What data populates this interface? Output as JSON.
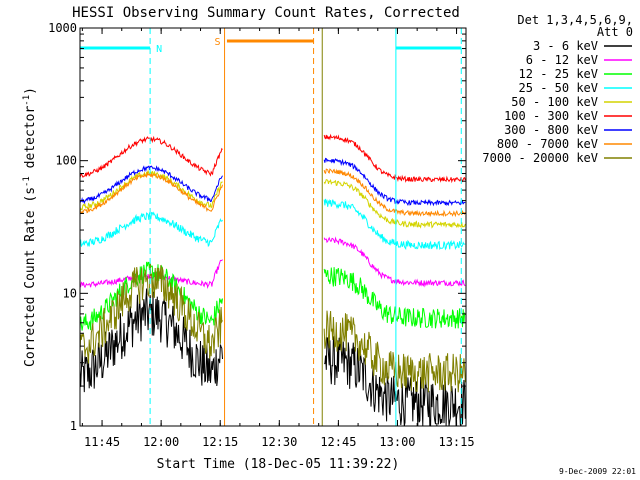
{
  "chart_data": {
    "type": "line",
    "title": "HESSI Observing Summary Count Rates, Corrected",
    "xlabel": "Start Time (18-Dec-05 11:39:22)",
    "ylabel": "Corrected Count Rate (s",
    "ylabel_sup1": "-1",
    "ylabel_mid": " detector",
    "ylabel_sup2": "-1",
    "ylabel_end": ")",
    "y_scale": "log",
    "ylim": [
      1,
      1000
    ],
    "xlim_minutes_from_start": [
      0,
      98
    ],
    "x_ticks": [
      {
        "label": "11:45",
        "t": 5.6
      },
      {
        "label": "12:00",
        "t": 20.6
      },
      {
        "label": "12:15",
        "t": 35.6
      },
      {
        "label": "12:30",
        "t": 50.6
      },
      {
        "label": "12:45",
        "t": 65.6
      },
      {
        "label": "13:00",
        "t": 80.6
      },
      {
        "label": "13:15",
        "t": 95.6
      }
    ],
    "y_ticks": [
      {
        "label": "1",
        "v": 1
      },
      {
        "label": "10",
        "v": 10
      },
      {
        "label": "100",
        "v": 100
      },
      {
        "label": "1000",
        "v": 1000
      }
    ],
    "legend_header": [
      "Det 1,3,4,5,6,9,",
      "Att 0"
    ],
    "legend_position": "right",
    "series": [
      {
        "name": "3 - 6 keV",
        "color": "#000000",
        "base": 2.2,
        "peak": 7.0,
        "post": 1.5,
        "noise": 0.45
      },
      {
        "name": "6 - 12 keV",
        "color": "#ff00ff",
        "base": 11.5,
        "peak": 13.5,
        "post": 12.0,
        "noise": 0.05
      },
      {
        "name": "12 - 25 keV",
        "color": "#00ff00",
        "base": 5.5,
        "peak": 14.5,
        "post": 6.5,
        "noise": 0.18
      },
      {
        "name": "25 - 50 keV",
        "color": "#00ffff",
        "base": 23,
        "peak": 38,
        "post": 23,
        "noise": 0.07
      },
      {
        "name": "50 - 100 keV",
        "color": "#d4d400",
        "base": 43,
        "peak": 80,
        "post": 33,
        "noise": 0.05
      },
      {
        "name": "100 - 300 keV",
        "color": "#ff0000",
        "base": 75,
        "peak": 145,
        "post": 72,
        "noise": 0.04
      },
      {
        "name": "300 - 800 keV",
        "color": "#0000ff",
        "base": 48,
        "peak": 88,
        "post": 48,
        "noise": 0.04
      },
      {
        "name": "800 - 7000 keV",
        "color": "#ff8800",
        "base": 40,
        "peak": 78,
        "post": 40,
        "noise": 0.04
      },
      {
        "name": "7000 - 20000 keV",
        "color": "#808000",
        "base": 3.5,
        "peak": 12.5,
        "post": 2.5,
        "noise": 0.35
      }
    ],
    "segments": [
      {
        "start": 0.0,
        "end": 36.2
      },
      {
        "start": 62.0,
        "end": 98.0
      }
    ],
    "annotations": [
      {
        "label": "N",
        "color": "#00ffff",
        "t": 17.8,
        "bar": [
          0,
          17.8
        ],
        "line_start": 0.0,
        "line_end": 78.0
      },
      {
        "label": "S",
        "color": "#ff8800",
        "t": 36.7,
        "bar": [
          37.3,
          59.3
        ],
        "line_start": 36.7,
        "line_end": 59.3
      }
    ],
    "extra_lines": [
      {
        "color": "#00ffff",
        "t": 80.2,
        "style": "solid",
        "bar": [
          80.2,
          96.8
        ]
      },
      {
        "color": "#00ffff",
        "t": 96.8,
        "style": "dashed"
      },
      {
        "color": "#808000",
        "t": 61.5,
        "style": "solid"
      },
      {
        "color": "#ff8800",
        "t": 59.3,
        "style": "dashed"
      }
    ]
  },
  "footer": {
    "date_stamp": "9-Dec-2009 22:01"
  }
}
